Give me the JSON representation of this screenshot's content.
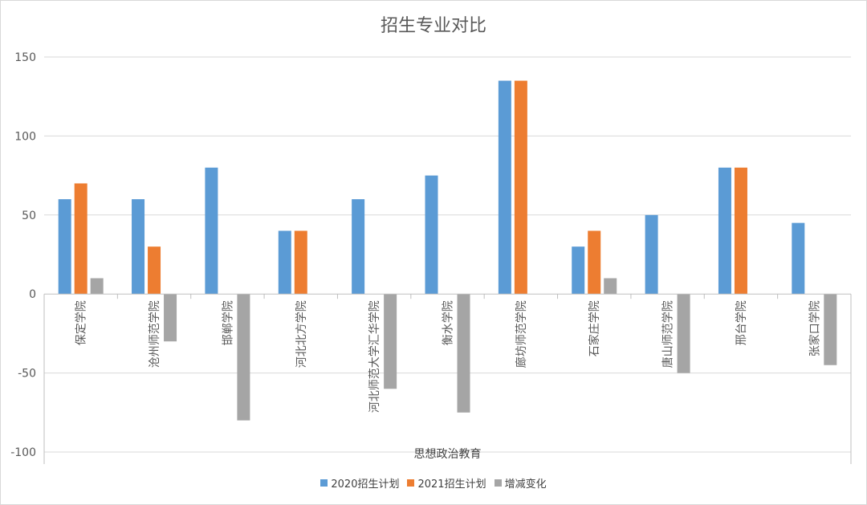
{
  "chart_data": {
    "type": "bar",
    "title": "招生专业对比",
    "group_label": "思想政治教育",
    "categories": [
      "保定学院",
      "沧州师范学院",
      "邯郸学院",
      "河北北方学院",
      "河北师范大学汇华学院",
      "衡水学院",
      "廊坊师范学院",
      "石家庄学院",
      "唐山师范学院",
      "邢台学院",
      "张家口学院"
    ],
    "series": [
      {
        "name": "2020招生计划",
        "color": "#5b9bd5",
        "values": [
          60,
          60,
          80,
          40,
          60,
          75,
          135,
          30,
          50,
          80,
          45
        ]
      },
      {
        "name": "2021招生计划",
        "color": "#ed7d31",
        "values": [
          70,
          30,
          0,
          40,
          0,
          0,
          135,
          40,
          0,
          80,
          0
        ]
      },
      {
        "name": "增减变化",
        "color": "#a5a5a5",
        "values": [
          10,
          -30,
          -80,
          0,
          -60,
          -75,
          0,
          10,
          -50,
          0,
          -45
        ]
      }
    ],
    "ylim": [
      -100,
      150
    ],
    "yticks": [
      150,
      100,
      50,
      0,
      -50,
      -100
    ],
    "grid": true,
    "legend_position": "bottom"
  }
}
